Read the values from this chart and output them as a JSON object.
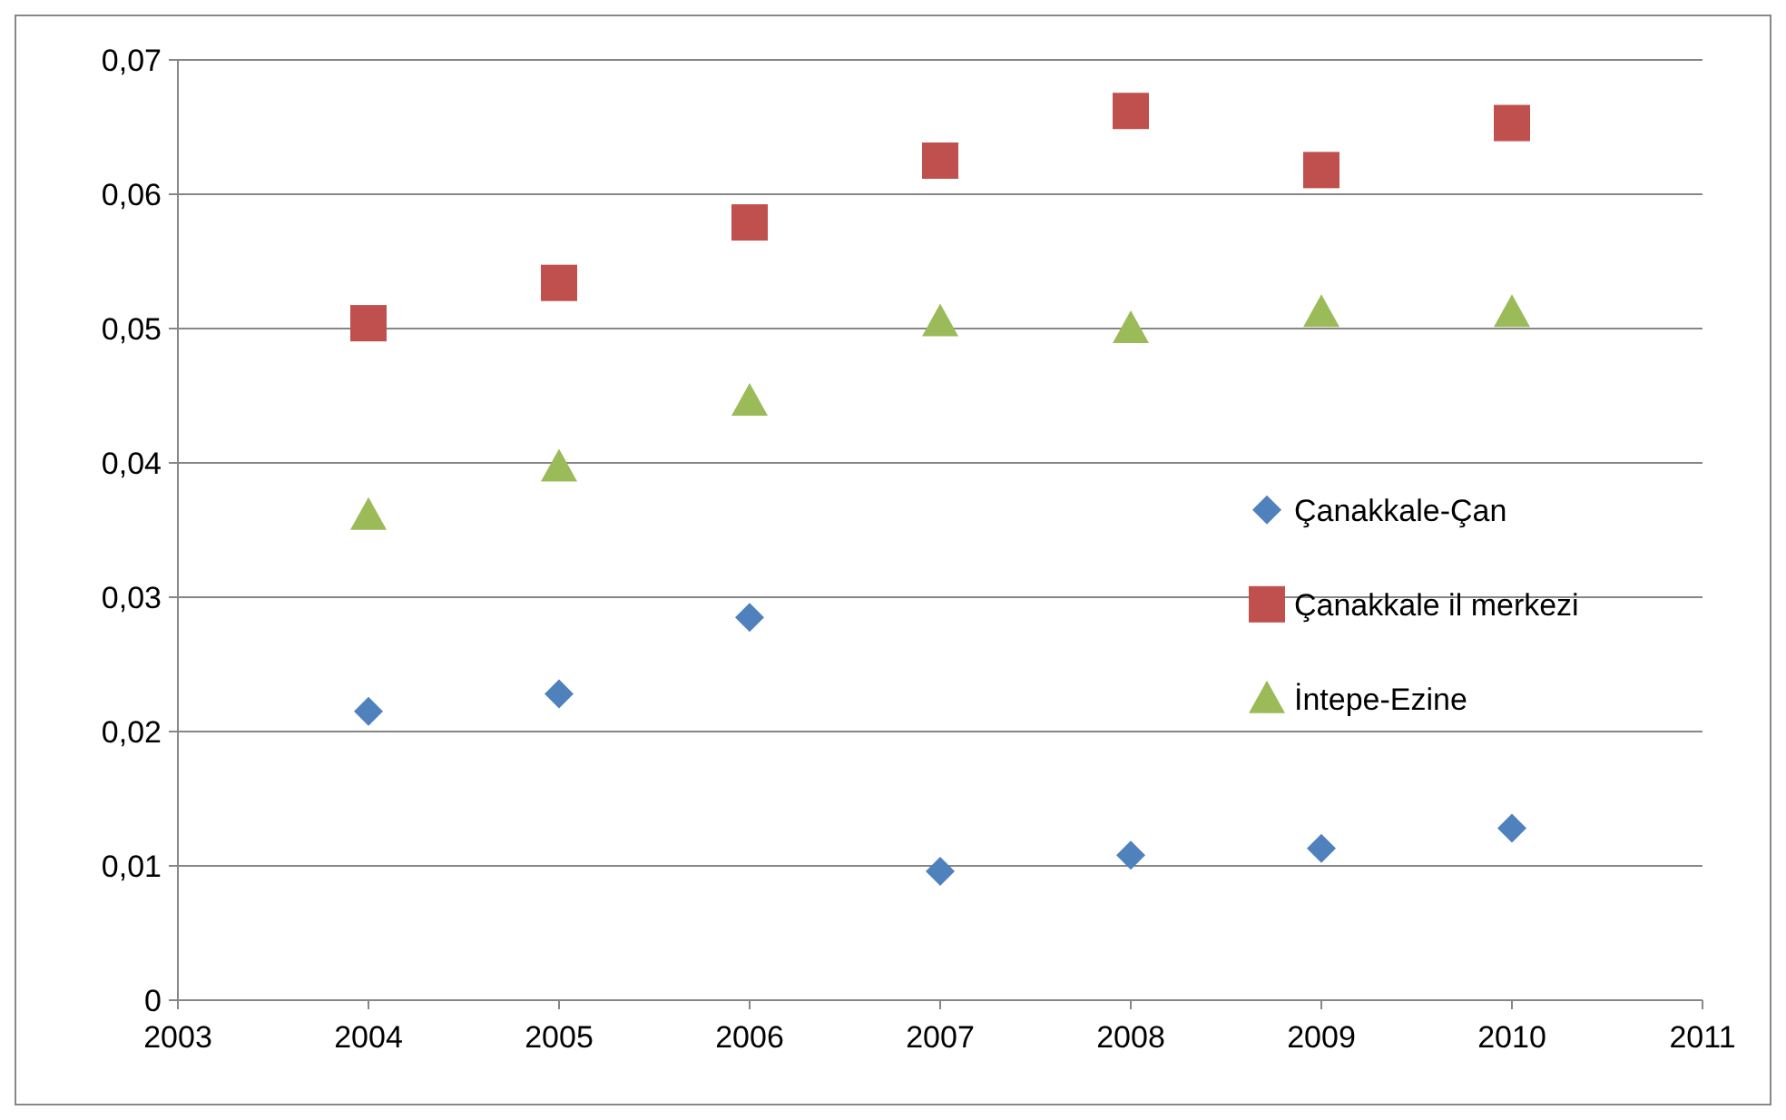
{
  "chart_data": {
    "type": "scatter",
    "x": [
      2004,
      2005,
      2006,
      2007,
      2008,
      2009,
      2010
    ],
    "series": [
      {
        "name": "Çanakkale-Çan",
        "color": "#4f81bd",
        "marker": "diamond",
        "values": [
          0.0215,
          0.0228,
          0.0285,
          0.0096,
          0.0108,
          0.0113,
          0.0128
        ]
      },
      {
        "name": "Çanakkale il merkezi",
        "color": "#c0504d",
        "marker": "square",
        "values": [
          0.0504,
          0.0534,
          0.0579,
          0.0625,
          0.0662,
          0.0618,
          0.0653
        ]
      },
      {
        "name": "İntepe-Ezine",
        "color": "#9bbb59",
        "marker": "triangle",
        "values": [
          0.0361,
          0.0397,
          0.0446,
          0.0505,
          0.05,
          0.0512,
          0.0512
        ]
      }
    ],
    "xlim": [
      2003,
      2011
    ],
    "xticks": [
      2003,
      2004,
      2005,
      2006,
      2007,
      2008,
      2009,
      2010,
      2011
    ],
    "ylim": [
      0,
      0.07
    ],
    "yticks": [
      0,
      {
        "value": 0.01,
        "label": "0,01"
      },
      {
        "value": 0.02,
        "label": "0,02"
      },
      {
        "value": 0.03,
        "label": "0,03"
      },
      {
        "value": 0.04,
        "label": "0,04"
      },
      {
        "value": 0.05,
        "label": "0,05"
      },
      {
        "value": 0.06,
        "label": "0,06"
      },
      {
        "value": 0.07,
        "label": "0,07"
      }
    ],
    "grid": "y",
    "legend": "right"
  }
}
